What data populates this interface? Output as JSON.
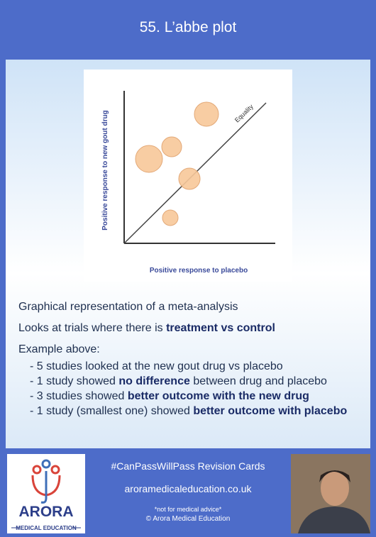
{
  "header": {
    "title": "55. L’abbe plot"
  },
  "figure": {
    "y_label": "Positive response to new gout drug",
    "x_label": "Positive response to placebo",
    "line_label": "Equality"
  },
  "body": {
    "intro": "Graphical representation of a meta-analysis",
    "lines": [
      [
        {
          "text": "Looks at trials where there is "
        },
        {
          "text": "treatment vs control",
          "bold": true
        }
      ]
    ],
    "example_heading": "Example above:",
    "bullets": [
      [
        {
          "text": "- 5 studies looked at the new gout drug vs placebo"
        }
      ],
      [
        {
          "text": "- 1 study showed "
        },
        {
          "text": "no difference",
          "bold": true
        },
        {
          "text": " between drug and placebo"
        }
      ],
      [
        {
          "text": "- 3 studies showed "
        },
        {
          "text": "better outcome with the new drug",
          "bold": true
        }
      ],
      [
        {
          "text": "- 1 study (smallest one) showed "
        },
        {
          "text": "better outcome with placebo",
          "bold": true
        }
      ]
    ]
  },
  "footer": {
    "logo_name": "ARORA",
    "logo_sub": "MEDICAL EDUCATION",
    "tagline": "#CanPassWillPass Revision Cards",
    "website": "aroramedicaleducation.co.uk",
    "disclaimer": "*not for medical advice*",
    "copyright": "© Arora Medical Education"
  }
}
